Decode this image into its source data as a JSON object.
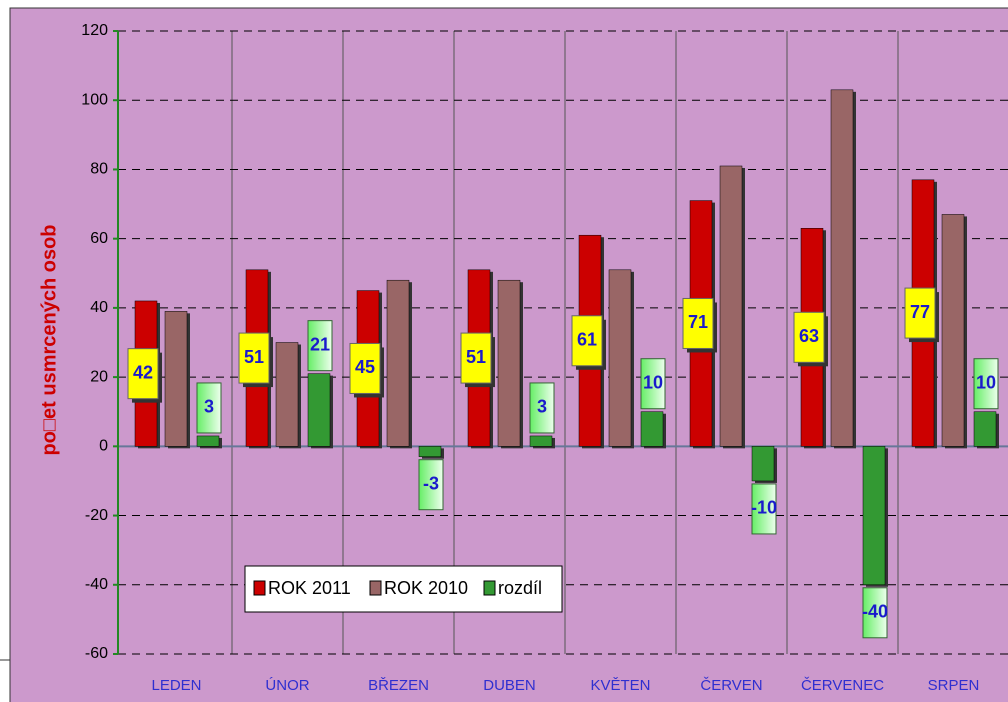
{
  "chart_data": {
    "type": "bar",
    "y_label": "po□et usmrcených osob",
    "categories": [
      "LEDEN",
      "ÚNOR",
      "BŘEZEN",
      "DUBEN",
      "KVĚTEN",
      "ČERVEN",
      "ČERVENEC",
      "SRPEN"
    ],
    "series": [
      {
        "name": "ROK 2011",
        "color": "#cc0000",
        "values": [
          42,
          51,
          45,
          51,
          61,
          71,
          63,
          77
        ]
      },
      {
        "name": "ROK 2010",
        "color": "#996666",
        "values": [
          39,
          30,
          48,
          48,
          51,
          81,
          103,
          67
        ]
      },
      {
        "name": "rozdíl",
        "color": "#339933",
        "values": [
          3,
          21,
          -3,
          3,
          10,
          -10,
          -40,
          10
        ]
      }
    ],
    "ylim": [
      -60,
      120
    ],
    "yticks": [
      -60,
      -40,
      -20,
      0,
      20,
      40,
      60,
      80,
      100,
      120
    ],
    "grid": true,
    "legend": "bottom-left"
  }
}
